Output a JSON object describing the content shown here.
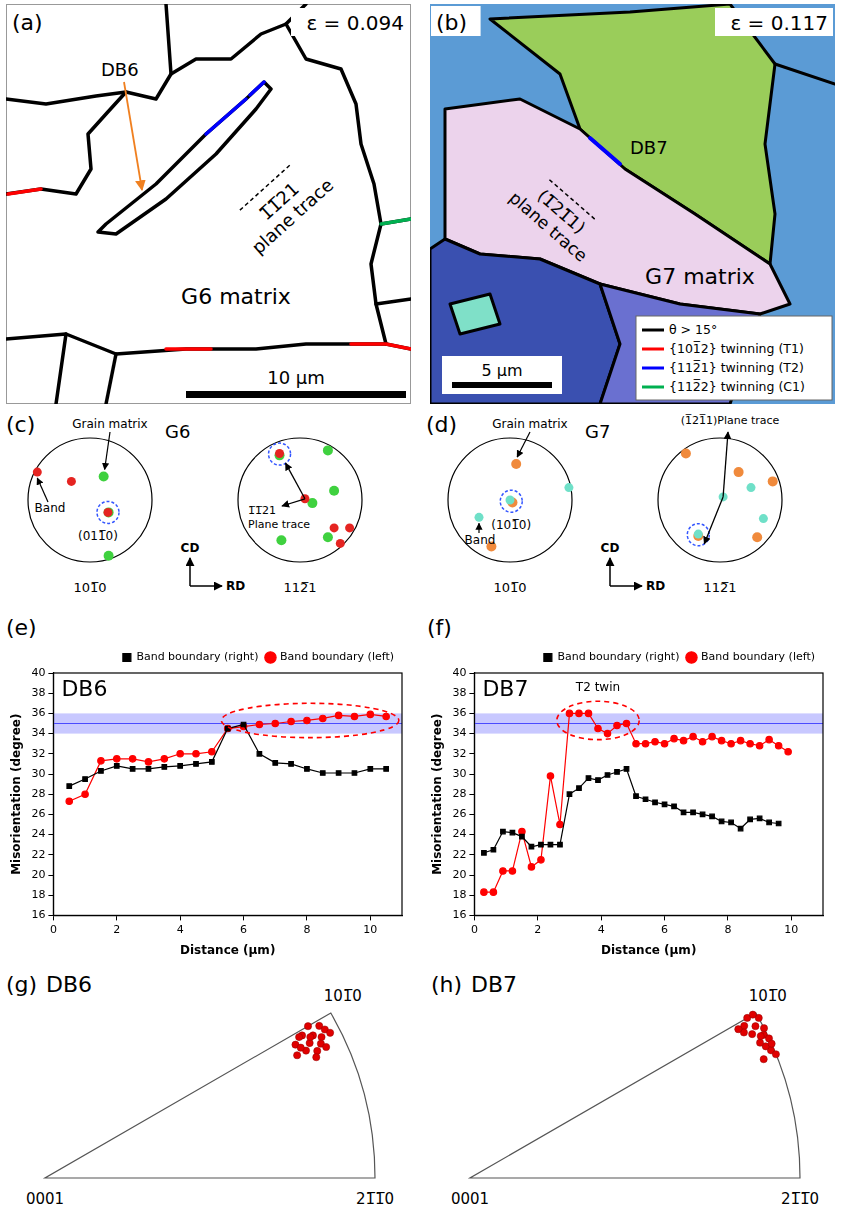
{
  "maps": [
    {
      "letter": "(a)",
      "strain": "ε = 0.094",
      "band": "DB6",
      "plane": "1̅1̅21",
      "plane_suffix": "plane trace",
      "matrix": "G6 matrix",
      "scale_bar": "10 μm"
    },
    {
      "letter": "(b)",
      "strain": "ε = 0.117",
      "band": "DB7",
      "plane": "(1̅21̅1)",
      "plane_suffix": "plane trace",
      "matrix": "G7 matrix",
      "scale_bar": "5 μm",
      "legend": [
        {
          "label": "θ > 15°",
          "color": "#000000"
        },
        {
          "label": "{101̅2} twinning (T1)",
          "color": "#ff0000"
        },
        {
          "label": "{112̅1} twinning (T2)",
          "color": "#0000ff"
        },
        {
          "label": "{112̅2} twinning (C1)",
          "color": "#00b050"
        }
      ]
    }
  ],
  "pole_figures": [
    {
      "letter": "(c)",
      "grain": "G6",
      "matrix_label": "Grain matrix",
      "band_label": "Band",
      "matrix_color": "#3fd13f",
      "band_color": "#e52421",
      "cd": "CD",
      "rd": "RD",
      "left": {
        "axis_label": "101̅0",
        "pole_label": "(011̅0)",
        "matrix_spots": [
          [
            0.22,
            0.38
          ],
          [
            0.3,
            -0.2
          ],
          [
            0.3,
            -0.9
          ]
        ],
        "band_spots": [
          [
            -0.85,
            0.45
          ],
          [
            -0.3,
            0.3
          ],
          [
            0.29,
            -0.2
          ]
        ],
        "highlight": [
          0.29,
          -0.2
        ]
      },
      "right": {
        "axis_label": "112̅1",
        "plane_label": "1̅1̅21",
        "plane_suffix": "Plane trace",
        "matrix_spots": [
          [
            -0.33,
            0.72
          ],
          [
            0.45,
            0.8
          ],
          [
            0.55,
            0.15
          ],
          [
            0.45,
            -0.6
          ],
          [
            -0.3,
            -0.65
          ],
          [
            0.2,
            -0.05
          ]
        ],
        "band_spots": [
          [
            -0.33,
            0.75
          ],
          [
            0.08,
            0.02
          ],
          [
            0.55,
            -0.45
          ],
          [
            0.8,
            -0.45
          ],
          [
            0.65,
            -0.7
          ]
        ],
        "highlight": [
          -0.33,
          0.74
        ],
        "trace_origin": [
          0.08,
          0.02
        ]
      }
    },
    {
      "letter": "(d)",
      "grain": "G7",
      "matrix_label": "Grain matrix",
      "band_label": "Band",
      "matrix_color": "#f08a3c",
      "band_color": "#6fe0c8",
      "cd": "CD",
      "rd": "RD",
      "left": {
        "axis_label": "101̅0",
        "pole_label": "(101̅0)",
        "matrix_spots": [
          [
            0.1,
            0.58
          ],
          [
            -0.3,
            -0.75
          ],
          [
            0.04,
            -0.04
          ]
        ],
        "band_spots": [
          [
            -0.5,
            -0.28
          ],
          [
            0.0,
            0.0
          ],
          [
            0.95,
            0.2
          ]
        ],
        "highlight": [
          0.02,
          -0.02
        ]
      },
      "right": {
        "axis_label": "112̅1",
        "plane_label": "(1̅21̅1)Plane trace",
        "matrix_spots": [
          [
            0.3,
            0.45
          ],
          [
            -0.35,
            -0.58
          ],
          [
            0.85,
            0.3
          ],
          [
            -0.55,
            0.75
          ],
          [
            0.6,
            -0.6
          ]
        ],
        "band_spots": [
          [
            -0.35,
            -0.55
          ],
          [
            0.05,
            0.05
          ],
          [
            0.5,
            0.2
          ],
          [
            0.7,
            -0.3
          ]
        ],
        "highlight": [
          -0.35,
          -0.56
        ],
        "trace_origin": [
          0.05,
          0.05
        ]
      }
    }
  ],
  "chart_data": [
    {
      "type": "line",
      "panel_label": "(e)",
      "title": "DB6",
      "x_label": "Distance (μm)",
      "y_label": "Misorientation (degree)",
      "xlim": [
        0,
        11
      ],
      "xticks": [
        0,
        2,
        4,
        6,
        8,
        10
      ],
      "ylim": [
        16,
        40
      ],
      "yticks": [
        16,
        18,
        20,
        22,
        24,
        26,
        28,
        30,
        32,
        34,
        36,
        38,
        40
      ],
      "grid": false,
      "legend": "top-right",
      "reference_band": {
        "from": 34,
        "to": 36,
        "line": 35,
        "color": "#4a4aff"
      },
      "highlight": {
        "xlim": [
          5.3,
          10.9
        ],
        "ylim": [
          33.6,
          37.0
        ],
        "color": "#ff0000"
      },
      "series": [
        {
          "name": "Band boundary (right)",
          "color": "#000000",
          "marker": "square",
          "line_style": "solid",
          "x": [
            0.5,
            1,
            1.5,
            2,
            2.5,
            3,
            3.5,
            4,
            4.5,
            5,
            5.5,
            6,
            6.5,
            7,
            7.5,
            8,
            8.5,
            9,
            9.5,
            10,
            10.5
          ],
          "values": [
            28.8,
            29.5,
            30.3,
            30.8,
            30.5,
            30.5,
            30.7,
            30.8,
            31.0,
            31.2,
            34.5,
            34.9,
            32.0,
            31.1,
            31.0,
            30.5,
            30.1,
            30.1,
            30.1,
            30.5,
            30.5
          ]
        },
        {
          "name": "Band boundary (left)",
          "color": "#ff0000",
          "marker": "circle",
          "line_style": "solid",
          "x": [
            0.5,
            1,
            1.5,
            2,
            2.5,
            3,
            3.5,
            4,
            4.5,
            5,
            5.5,
            6,
            6.5,
            7,
            7.5,
            8,
            8.5,
            9,
            9.5,
            10,
            10.5
          ],
          "values": [
            27.3,
            28.0,
            31.3,
            31.5,
            31.5,
            31.2,
            31.5,
            32.0,
            32.0,
            32.2,
            34.5,
            34.7,
            34.9,
            35.0,
            35.2,
            35.3,
            35.5,
            35.8,
            35.7,
            35.9,
            35.7
          ]
        }
      ]
    },
    {
      "type": "line",
      "panel_label": "(f)",
      "title": "DB7",
      "x_label": "Distance (μm)",
      "y_label": "Misorientation (degree)",
      "xlim": [
        0,
        11
      ],
      "xticks": [
        0,
        2,
        4,
        6,
        8,
        10
      ],
      "ylim": [
        16,
        40
      ],
      "yticks": [
        16,
        18,
        20,
        22,
        24,
        26,
        28,
        30,
        32,
        34,
        36,
        38,
        40
      ],
      "grid": false,
      "legend": "top-right",
      "reference_band": {
        "from": 34,
        "to": 36,
        "line": 35,
        "color": "#4a4aff"
      },
      "highlight": {
        "xlim": [
          2.6,
          5.2
        ],
        "ylim": [
          33.4,
          37.2
        ],
        "color": "#ff0000"
      },
      "annotation": {
        "text": "T2 twin",
        "x": 3.9,
        "y": 38.2
      },
      "series": [
        {
          "name": "Band boundary (right)",
          "color": "#000000",
          "marker": "square",
          "line_style": "solid",
          "x": [
            0.3,
            0.6,
            0.9,
            1.2,
            1.5,
            1.8,
            2.1,
            2.4,
            2.7,
            3.0,
            3.3,
            3.6,
            3.9,
            4.2,
            4.5,
            4.8,
            5.1,
            5.4,
            5.7,
            6.0,
            6.3,
            6.6,
            6.9,
            7.2,
            7.5,
            7.8,
            8.1,
            8.4,
            8.7,
            9.0,
            9.3,
            9.6
          ],
          "values": [
            22.2,
            22.5,
            24.3,
            24.2,
            23.8,
            22.8,
            23.0,
            23.0,
            23.0,
            28.0,
            28.6,
            29.6,
            29.4,
            29.9,
            30.2,
            30.5,
            27.8,
            27.5,
            27.2,
            27.0,
            26.8,
            26.2,
            26.2,
            26.0,
            25.8,
            25.3,
            25.2,
            24.6,
            25.5,
            25.6,
            25.2,
            25.1
          ]
        },
        {
          "name": "Band boundary (left)",
          "color": "#ff0000",
          "marker": "circle",
          "line_style": "solid",
          "x": [
            0.3,
            0.6,
            0.9,
            1.2,
            1.5,
            1.8,
            2.1,
            2.4,
            2.7,
            3.0,
            3.3,
            3.6,
            3.9,
            4.2,
            4.5,
            4.8,
            5.1,
            5.4,
            5.7,
            6.0,
            6.3,
            6.6,
            6.9,
            7.2,
            7.5,
            7.8,
            8.1,
            8.4,
            8.7,
            9.0,
            9.3,
            9.6,
            9.9
          ],
          "values": [
            18.3,
            18.3,
            20.4,
            20.4,
            24.3,
            20.8,
            21.5,
            29.8,
            25.0,
            36.0,
            36.0,
            36.0,
            34.5,
            34.0,
            34.8,
            35.0,
            33.0,
            33.0,
            33.2,
            33.0,
            33.5,
            33.3,
            33.7,
            33.2,
            33.7,
            33.3,
            33.0,
            33.3,
            33.0,
            32.8,
            33.4,
            32.8,
            32.2
          ]
        }
      ]
    }
  ],
  "ipfs": [
    {
      "letter": "(g)",
      "title": "DB6",
      "top": "101̅0",
      "origin": "0001",
      "right": "21̅1̅0",
      "color": "#e00000",
      "points": [
        [
          0.802,
          0.409
        ],
        [
          0.812,
          0.432
        ],
        [
          0.791,
          0.386
        ],
        [
          0.838,
          0.427
        ],
        [
          0.825,
          0.385
        ],
        [
          0.759,
          0.404
        ],
        [
          0.831,
          0.461
        ],
        [
          0.779,
          0.432
        ],
        [
          0.836,
          0.407
        ],
        [
          0.775,
          0.395
        ],
        [
          0.848,
          0.45
        ],
        [
          0.822,
          0.366
        ],
        [
          0.797,
          0.46
        ],
        [
          0.764,
          0.372
        ],
        [
          0.864,
          0.44
        ],
        [
          0.77,
          0.427
        ],
        [
          0.804,
          0.427
        ],
        [
          0.852,
          0.397
        ]
      ]
    },
    {
      "letter": "(h)",
      "title": "DB7",
      "top": "101̅0",
      "origin": "0001",
      "right": "21̅1̅0",
      "color": "#e00000",
      "points": [
        [
          0.875,
          0.485
        ],
        [
          0.865,
          0.46
        ],
        [
          0.89,
          0.434
        ],
        [
          0.84,
          0.485
        ],
        [
          0.906,
          0.423
        ],
        [
          0.855,
          0.436
        ],
        [
          0.912,
          0.387
        ],
        [
          0.927,
          0.375
        ],
        [
          0.831,
          0.461
        ],
        [
          0.896,
          0.399
        ],
        [
          0.83,
          0.441
        ],
        [
          0.891,
          0.454
        ],
        [
          0.879,
          0.41
        ],
        [
          0.857,
          0.495
        ],
        [
          0.813,
          0.451
        ],
        [
          0.914,
          0.407
        ],
        [
          0.89,
          0.36
        ],
        [
          0.881,
          0.43
        ]
      ]
    }
  ]
}
